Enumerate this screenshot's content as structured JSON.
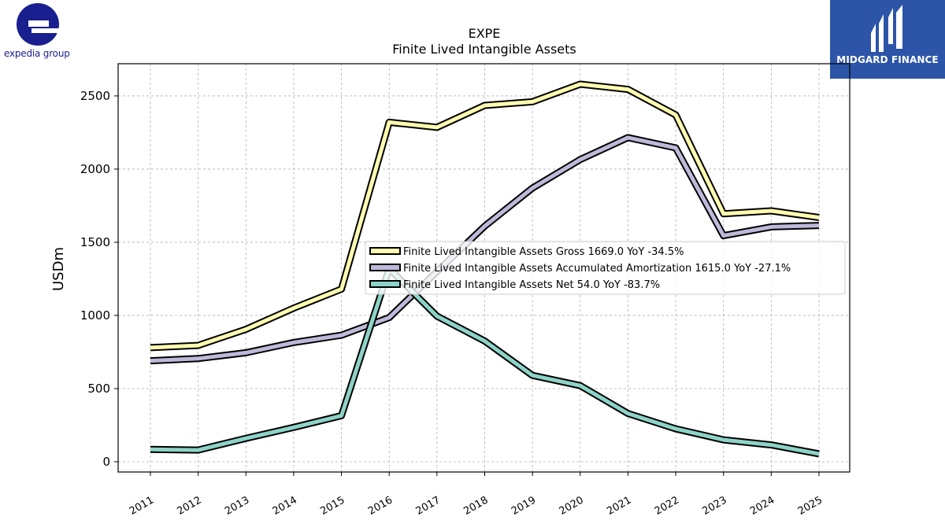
{
  "logos": {
    "left": {
      "icon": "expedia-e-logo-icon",
      "text": "expedia group",
      "color": "#1a1f8f"
    },
    "right": {
      "icon": "midgard-mark-icon",
      "text": "MIDGARD FINANCE",
      "background": "#2c55a8"
    }
  },
  "chart_data": {
    "type": "line",
    "title": "EXPE",
    "subtitle": "Finite Lived Intangible Assets",
    "xlabel": "",
    "ylabel": "USDm",
    "categories": [
      "2011",
      "2012",
      "2013",
      "2014",
      "2015",
      "2016",
      "2017",
      "2018",
      "2019",
      "2020",
      "2021",
      "2022",
      "2023",
      "2024",
      "2025"
    ],
    "ylim": [
      -70,
      2720
    ],
    "yticks": [
      0,
      500,
      1000,
      1500,
      2000,
      2500
    ],
    "grid": true,
    "legend_position": "center-right",
    "series": [
      {
        "name": "Finite Lived Intangible Assets Gross",
        "legend_label": "Finite Lived Intangible Assets Gross  1669.0 YoY -34.5%",
        "color": "#fdfcb0",
        "values": [
          780,
          795,
          905,
          1050,
          1180,
          2320,
          2285,
          2435,
          2460,
          2580,
          2545,
          2370,
          1695,
          1715,
          1669
        ]
      },
      {
        "name": "Finite Lived Intangible Assets Accumulated Amortization",
        "legend_label": "Finite Lived Intangible Assets Accumulated Amortization  1615.0 YoY -27.1%",
        "color": "#bdb9d9",
        "values": [
          690,
          705,
          745,
          815,
          865,
          985,
          1300,
          1610,
          1870,
          2065,
          2215,
          2145,
          1545,
          1605,
          1615
        ]
      },
      {
        "name": "Finite Lived Intangible Assets Net",
        "legend_label": "Finite Lived Intangible Assets Net  54.0 YoY -83.7%",
        "color": "#8dd3c7",
        "values": [
          85,
          80,
          160,
          235,
          315,
          1320,
          995,
          825,
          590,
          520,
          330,
          225,
          150,
          115,
          54
        ]
      }
    ]
  }
}
